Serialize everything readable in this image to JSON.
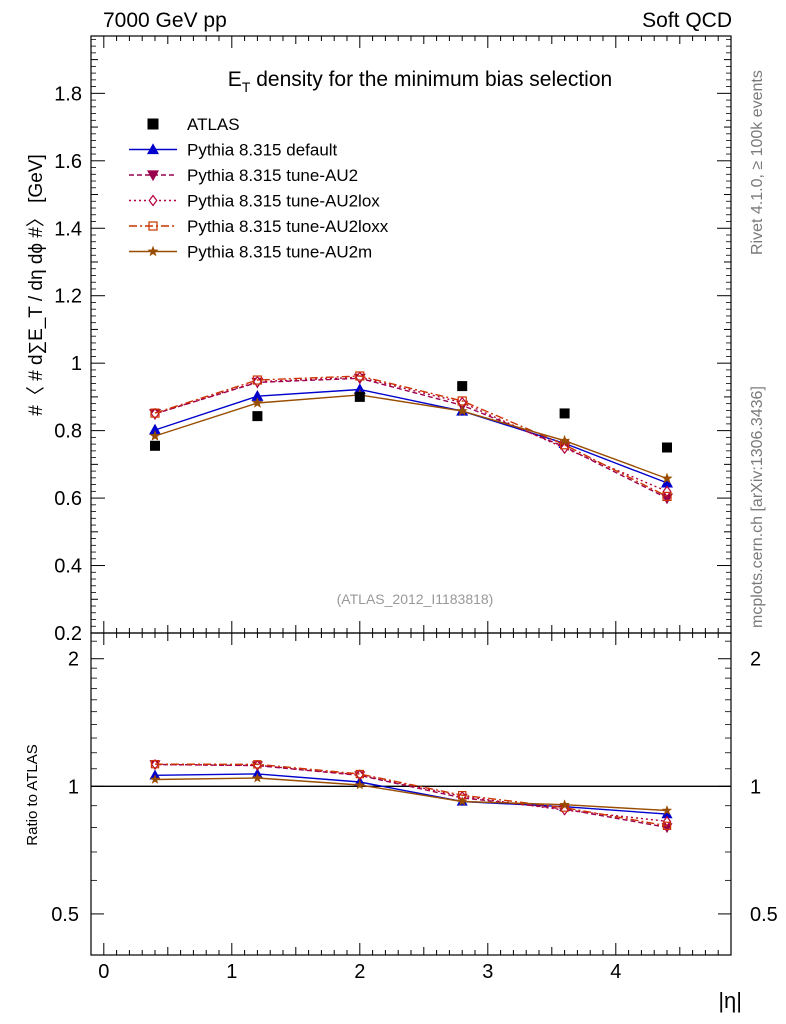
{
  "header": {
    "left": "7000 GeV pp",
    "right": "Soft QCD"
  },
  "side_labels": {
    "rivet": "Rivet 4.1.0, ≥ 100k events",
    "mcplots": "mcplots.cern.ch [arXiv:1306.3436]"
  },
  "chart_data": {
    "type": "line",
    "title": "E_T density  for the minimum bias selection",
    "title_main": "E",
    "title_sub": "T",
    "title_rest": " density  for the minimum bias selection",
    "analysis_id": "(ATLAS_2012_I1183818)",
    "xlabel": "|η|",
    "ylabel_main": "#〈 # d∑E_T / dη dϕ #〉 [GeV]",
    "ylabel_ratio": "Ratio to ATLAS",
    "xlim": [
      -0.1,
      4.9
    ],
    "ylim": [
      0.2,
      1.97
    ],
    "ratio_ylim": [
      0.4,
      2.3
    ],
    "x_ticks": [
      0,
      1,
      2,
      3,
      4
    ],
    "x_tick_labels": [
      "0",
      "1",
      "2",
      "3",
      "4"
    ],
    "y_ticks": [
      0.2,
      0.4,
      0.6,
      0.8,
      1.0,
      1.2,
      1.4,
      1.6,
      1.8
    ],
    "y_tick_labels": [
      "0.2",
      "0.4",
      "0.6",
      "0.8",
      "1",
      "1.2",
      "1.4",
      "1.6",
      "1.8"
    ],
    "ratio_ticks": [
      0.5,
      1,
      2
    ],
    "ratio_tick_labels": [
      "0.5",
      "1",
      "2"
    ],
    "x": [
      0.4,
      1.2,
      2.0,
      2.8,
      3.6,
      4.4
    ],
    "data": {
      "name": "ATLAS",
      "values": [
        0.755,
        0.843,
        0.9,
        0.932,
        0.851,
        0.75
      ]
    },
    "series": [
      {
        "name": "Pythia 8.315 default",
        "color": "#0000cc",
        "marker": "triangle-up",
        "dash": "",
        "values": [
          0.802,
          0.902,
          0.922,
          0.858,
          0.762,
          0.645
        ],
        "ratio": [
          1.062,
          1.07,
          1.024,
          0.921,
          0.895,
          0.86
        ]
      },
      {
        "name": "Pythia 8.315 tune-AU2",
        "color": "#99004d",
        "marker": "triangle-down",
        "dash": "5,3",
        "values": [
          0.85,
          0.943,
          0.955,
          0.875,
          0.752,
          0.6
        ],
        "ratio": [
          1.126,
          1.119,
          1.061,
          0.939,
          0.884,
          0.8
        ]
      },
      {
        "name": "Pythia 8.315 tune-AU2lox",
        "color": "#b3003b",
        "marker": "diamond",
        "dash": "2,3",
        "values": [
          0.85,
          0.945,
          0.958,
          0.883,
          0.748,
          0.62
        ],
        "ratio": [
          1.126,
          1.121,
          1.064,
          0.947,
          0.879,
          0.827
        ]
      },
      {
        "name": "Pythia 8.315 tune-AU2loxx",
        "color": "#cc3300",
        "marker": "square-open",
        "dash": "8,3,2,3",
        "values": [
          0.852,
          0.95,
          0.962,
          0.888,
          0.758,
          0.605
        ],
        "ratio": [
          1.128,
          1.127,
          1.069,
          0.953,
          0.891,
          0.807
        ]
      },
      {
        "name": "Pythia 8.315 tune-AU2m",
        "color": "#994d00",
        "marker": "star",
        "dash": "",
        "values": [
          0.784,
          0.882,
          0.906,
          0.858,
          0.77,
          0.658
        ],
        "ratio": [
          1.038,
          1.046,
          1.007,
          0.921,
          0.905,
          0.877
        ]
      }
    ]
  }
}
